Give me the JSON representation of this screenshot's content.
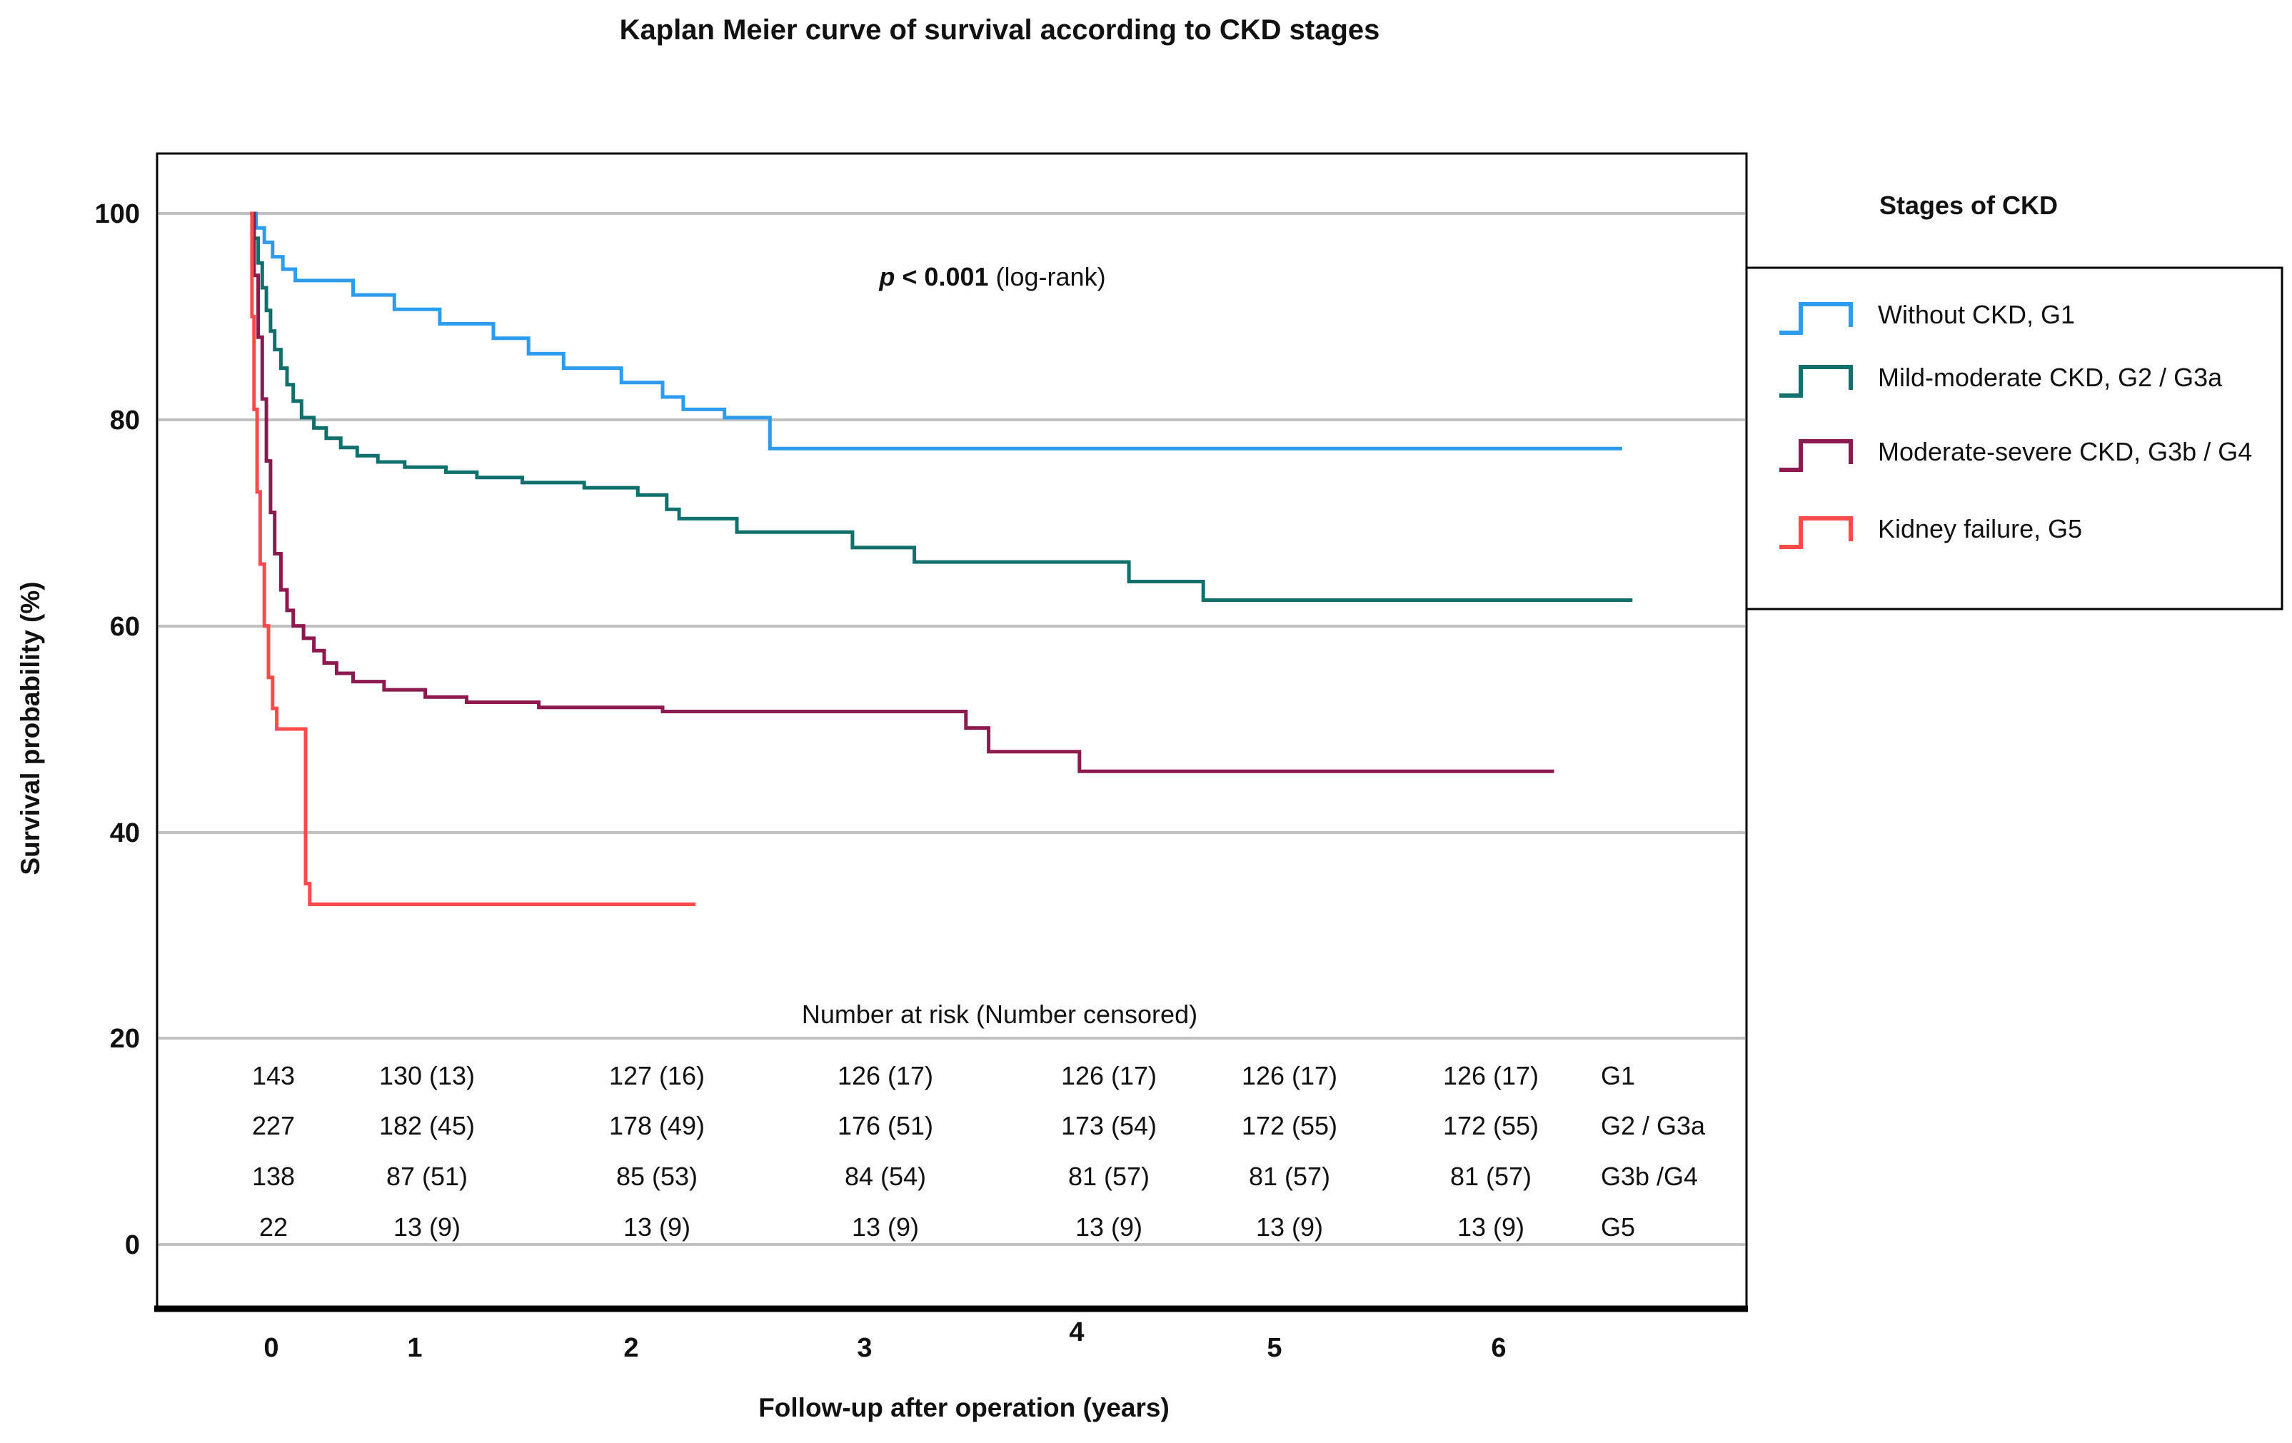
{
  "figure_title": "Kaplan Meier curve of survival according to CKD stages",
  "annotation": {
    "p_symbol": "p",
    "p_comparison": " < 0.001 ",
    "p_method": "(log-rank)"
  },
  "axes": {
    "y": {
      "label": "Survival probability (%)",
      "tick_labels": [
        "100",
        "80",
        "60",
        "40",
        "20",
        "0"
      ],
      "range": [
        0,
        100
      ],
      "grid": true
    },
    "x": {
      "label": "Follow-up after operation (years)",
      "tick_labels": [
        "0",
        "1",
        "2",
        "3",
        "4",
        "5",
        "6"
      ],
      "range": [
        0,
        7
      ]
    }
  },
  "legend": {
    "title": "Stages of CKD",
    "position": "right",
    "items": [
      {
        "id": "g1",
        "label": "Without CKD, G1",
        "color": "#2D9BEE"
      },
      {
        "id": "g2",
        "label": "Mild-moderate CKD, G2 / G3a",
        "color": "#12706C"
      },
      {
        "id": "g3b",
        "label": "Moderate-severe CKD, G3b / G4",
        "color": "#8D1A4E"
      },
      {
        "id": "g5",
        "label": "Kidney failure, G5",
        "color": "#FB4A4A"
      }
    ]
  },
  "risk_table": {
    "header": "Number at risk (Number censored)",
    "rows": [
      {
        "label": "G1",
        "color": "#2AA9E1",
        "values": [
          "143",
          "130 (13)",
          "127 (16)",
          "126 (17)",
          "126 (17)",
          "126 (17)",
          "126 (17)"
        ]
      },
      {
        "label": "G2 / G3a",
        "color": "#169C4F",
        "values": [
          "227",
          "182 (45)",
          "178 (49)",
          "176 (51)",
          "173 (54)",
          "172 (55)",
          "172 (55)"
        ]
      },
      {
        "label": "G3b /G4",
        "color": "#8129A5",
        "values": [
          "138",
          "87 (51)",
          "85 (53)",
          "84 (54)",
          "81 (57)",
          "81 (57)",
          "81 (57)"
        ]
      },
      {
        "label": "G5",
        "color": "#FD1111",
        "values": [
          "22",
          "13 (9)",
          "13 (9)",
          "13 (9)",
          "13 (9)",
          "13 (9)",
          "13 (9)"
        ]
      }
    ]
  },
  "chart_data": {
    "type": "line",
    "subtype": "kaplan-meier-step",
    "title": "Kaplan Meier curve of survival according to CKD stages",
    "xlabel": "Follow-up after operation (years)",
    "ylabel": "Survival probability (%)",
    "xlim": [
      0,
      7.3
    ],
    "ylim": [
      0,
      100
    ],
    "grid": "horizontal",
    "legend_position": "right",
    "annotation_text": "p < 0.001 (log-rank)",
    "series": [
      {
        "id": "g1",
        "name": "Without CKD, G1",
        "color": "#2D9BEE",
        "end": 6.65,
        "steps": [
          [
            0,
            100
          ],
          [
            0.03,
            98.6
          ],
          [
            0.07,
            97.2
          ],
          [
            0.11,
            95.8
          ],
          [
            0.16,
            94.6
          ],
          [
            0.22,
            93.5
          ],
          [
            0.5,
            92.1
          ],
          [
            0.7,
            90.7
          ],
          [
            0.92,
            89.3
          ],
          [
            1.18,
            87.9
          ],
          [
            1.35,
            86.4
          ],
          [
            1.52,
            85.0
          ],
          [
            1.8,
            83.6
          ],
          [
            2.0,
            82.2
          ],
          [
            2.1,
            81.0
          ],
          [
            2.3,
            80.2
          ],
          [
            2.52,
            77.2
          ]
        ]
      },
      {
        "id": "g2",
        "name": "Mild-moderate CKD, G2 / G3a",
        "color": "#12706C",
        "end": 6.7,
        "steps": [
          [
            0,
            100
          ],
          [
            0.02,
            97.6
          ],
          [
            0.04,
            95.2
          ],
          [
            0.06,
            92.8
          ],
          [
            0.08,
            90.6
          ],
          [
            0.1,
            88.6
          ],
          [
            0.12,
            86.8
          ],
          [
            0.15,
            85.0
          ],
          [
            0.18,
            83.4
          ],
          [
            0.21,
            81.8
          ],
          [
            0.25,
            80.2
          ],
          [
            0.31,
            79.2
          ],
          [
            0.37,
            78.2
          ],
          [
            0.44,
            77.3
          ],
          [
            0.52,
            76.5
          ],
          [
            0.62,
            75.9
          ],
          [
            0.75,
            75.4
          ],
          [
            0.95,
            74.9
          ],
          [
            1.1,
            74.4
          ],
          [
            1.32,
            73.9
          ],
          [
            1.62,
            73.4
          ],
          [
            1.88,
            72.7
          ],
          [
            2.02,
            71.3
          ],
          [
            2.08,
            70.4
          ],
          [
            2.36,
            69.1
          ],
          [
            2.92,
            67.6
          ],
          [
            3.22,
            66.2
          ],
          [
            4.26,
            64.3
          ],
          [
            4.62,
            62.5
          ]
        ]
      },
      {
        "id": "g3b",
        "name": "Moderate-severe CKD, G3b / G4",
        "color": "#8D1A4E",
        "end": 6.32,
        "steps": [
          [
            0,
            100
          ],
          [
            0.02,
            94
          ],
          [
            0.04,
            88
          ],
          [
            0.06,
            82
          ],
          [
            0.08,
            76
          ],
          [
            0.1,
            71
          ],
          [
            0.12,
            67
          ],
          [
            0.15,
            63.5
          ],
          [
            0.18,
            61.5
          ],
          [
            0.21,
            60.0
          ],
          [
            0.26,
            58.8
          ],
          [
            0.31,
            57.6
          ],
          [
            0.36,
            56.4
          ],
          [
            0.42,
            55.4
          ],
          [
            0.5,
            54.6
          ],
          [
            0.65,
            53.8
          ],
          [
            0.85,
            53.1
          ],
          [
            1.05,
            52.6
          ],
          [
            1.4,
            52.1
          ],
          [
            2.0,
            51.7
          ],
          [
            3.47,
            50.1
          ],
          [
            3.58,
            47.8
          ],
          [
            4.02,
            45.9
          ]
        ]
      },
      {
        "id": "g5",
        "name": "Kidney failure, G5",
        "color": "#FB4A4A",
        "end": 2.16,
        "steps": [
          [
            0,
            100
          ],
          [
            0.01,
            90
          ],
          [
            0.02,
            81
          ],
          [
            0.035,
            73
          ],
          [
            0.05,
            66
          ],
          [
            0.07,
            60
          ],
          [
            0.09,
            55
          ],
          [
            0.11,
            52
          ],
          [
            0.13,
            50
          ],
          [
            0.27,
            35
          ],
          [
            0.29,
            33
          ]
        ]
      }
    ],
    "number_at_risk": {
      "times": [
        0,
        1,
        2,
        3,
        4,
        5,
        6
      ],
      "G1": [
        "143",
        "130 (13)",
        "127 (16)",
        "126 (17)",
        "126 (17)",
        "126 (17)",
        "126 (17)"
      ],
      "G2 / G3a": [
        "227",
        "182 (45)",
        "178 (49)",
        "176 (51)",
        "173 (54)",
        "172 (55)",
        "172 (55)"
      ],
      "G3b /G4": [
        "138",
        "87 (51)",
        "85 (53)",
        "84 (54)",
        "81 (57)",
        "81 (57)",
        "81 (57)"
      ],
      "G5": [
        "22",
        "13 (9)",
        "13 (9)",
        "13 (9)",
        "13 (9)",
        "13 (9)",
        "13 (9)"
      ]
    }
  }
}
